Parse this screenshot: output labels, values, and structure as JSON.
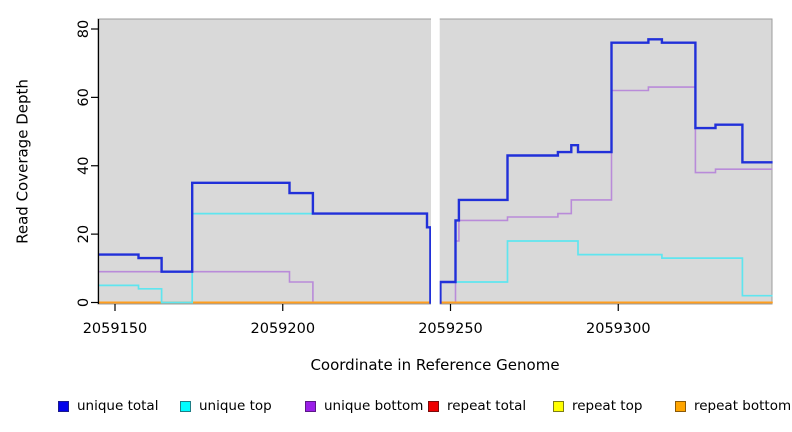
{
  "figure": {
    "background": "#FFFFFF",
    "panel_background": "#D9D9D9",
    "panel_border": "#9C9C9C",
    "axis_color": "#000000"
  },
  "chart_data": {
    "type": "line",
    "subtype": "step-after",
    "title": "",
    "xlabel": "Coordinate in Reference Genome",
    "ylabel": "Read Coverage Depth",
    "x_ticks": [
      2059150,
      2059200,
      2059250,
      2059300
    ],
    "y_ticks": [
      0,
      20,
      40,
      60,
      80
    ],
    "x_range": [
      2059145,
      2059346
    ],
    "y_range": [
      0,
      83
    ],
    "grid": "off",
    "legend_position": "bottom",
    "gap_mask": {
      "from": 2059244.2,
      "to": 2059246.8
    },
    "series": [
      {
        "name": "repeat total",
        "color": "#DC1414",
        "width": 1.5,
        "points": [
          [
            2059145,
            0
          ],
          [
            2059346,
            0
          ]
        ]
      },
      {
        "name": "repeat top",
        "color": "#F5F500",
        "width": 1.5,
        "points": [
          [
            2059145,
            0
          ],
          [
            2059346,
            0
          ]
        ]
      },
      {
        "name": "unique bottom",
        "color": "#B98BD9",
        "width": 1.6,
        "points": [
          [
            2059145,
            9
          ],
          [
            2059202,
            6
          ],
          [
            2059209,
            0
          ],
          [
            2059251.5,
            18
          ],
          [
            2059252.5,
            24
          ],
          [
            2059267,
            25
          ],
          [
            2059282,
            26
          ],
          [
            2059286,
            30
          ],
          [
            2059298,
            62
          ],
          [
            2059309,
            63
          ],
          [
            2059323,
            38
          ],
          [
            2059329,
            39
          ],
          [
            2059346,
            39
          ]
        ]
      },
      {
        "name": "repeat bottom",
        "color": "#FF9E1F",
        "width": 2.0,
        "points": [
          [
            2059145,
            0
          ],
          [
            2059346,
            0
          ]
        ]
      },
      {
        "name": "unique top",
        "color": "#5FE5EF",
        "width": 1.7,
        "points": [
          [
            2059145,
            5
          ],
          [
            2059157,
            4
          ],
          [
            2059163.9,
            0
          ],
          [
            2059173,
            26
          ],
          [
            2059243,
            22
          ],
          [
            2059244,
            0
          ],
          [
            2059247,
            6
          ],
          [
            2059267,
            18
          ],
          [
            2059288,
            14
          ],
          [
            2059313,
            13
          ],
          [
            2059337,
            2
          ],
          [
            2059346,
            2
          ]
        ]
      },
      {
        "name": "unique total",
        "color": "#2130D9",
        "width": 2.4,
        "points": [
          [
            2059145,
            14
          ],
          [
            2059157,
            13
          ],
          [
            2059163.9,
            9
          ],
          [
            2059173,
            35
          ],
          [
            2059202,
            32
          ],
          [
            2059209,
            26
          ],
          [
            2059243,
            22
          ],
          [
            2059244,
            0
          ],
          [
            2059247,
            6
          ],
          [
            2059251.5,
            24
          ],
          [
            2059252.5,
            30
          ],
          [
            2059267,
            43
          ],
          [
            2059282,
            44
          ],
          [
            2059286,
            46
          ],
          [
            2059288,
            44
          ],
          [
            2059298,
            76
          ],
          [
            2059309,
            77
          ],
          [
            2059313,
            76
          ],
          [
            2059323,
            51
          ],
          [
            2059329,
            52
          ],
          [
            2059337,
            41
          ],
          [
            2059346,
            41
          ]
        ]
      }
    ]
  },
  "legend": {
    "items": [
      {
        "label": "unique total",
        "fill": "#0202EA",
        "border": "#1A1A8C"
      },
      {
        "label": "unique top",
        "fill": "#00FDFF",
        "border": "#1F7D85"
      },
      {
        "label": "unique bottom",
        "fill": "#9B1FE8",
        "border": "#5C1887"
      },
      {
        "label": "repeat total",
        "fill": "#EE0000",
        "border": "#7A0C0C"
      },
      {
        "label": "repeat top",
        "fill": "#FFFF00",
        "border": "#7D7D15"
      },
      {
        "label": "repeat bottom",
        "fill": "#FFA500",
        "border": "#8A5A0A"
      }
    ]
  }
}
